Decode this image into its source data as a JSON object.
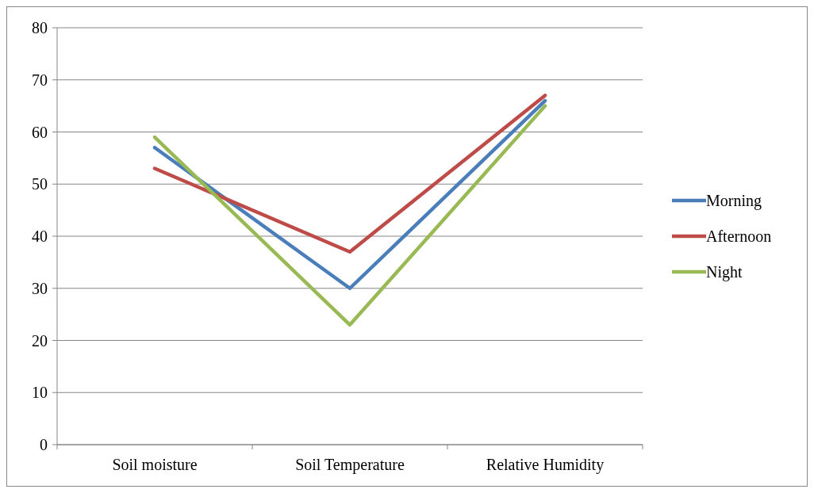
{
  "chart_data": {
    "type": "line",
    "categories": [
      "Soil moisture",
      "Soil Temperature",
      "Relative Humidity"
    ],
    "series": [
      {
        "name": "Morning",
        "color": "#4a7ebb",
        "values": [
          57,
          30,
          66
        ]
      },
      {
        "name": "Afternoon",
        "color": "#be4b48",
        "values": [
          53,
          37,
          67
        ]
      },
      {
        "name": "Night",
        "color": "#98b954",
        "values": [
          59,
          23,
          65
        ]
      }
    ],
    "ylim": [
      0,
      80
    ],
    "yticks": [
      0,
      10,
      20,
      30,
      40,
      50,
      60,
      70,
      80
    ],
    "grid": "y",
    "legend": "right",
    "marker": "none",
    "line_style": "solid"
  }
}
